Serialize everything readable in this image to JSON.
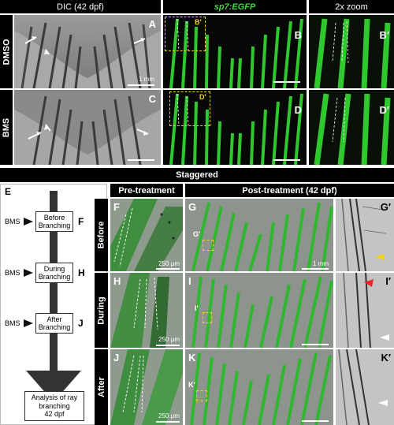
{
  "headers": {
    "dic": "DIC (42 dpf)",
    "sp7": "sp7:EGFP",
    "zoom": "2x zoom",
    "staggered": "Staggered",
    "pre": "Pre-treatment",
    "post": "Post-treatment (42 dpf)"
  },
  "row_labels": {
    "dmso": "DMSO",
    "bms": "BMS",
    "before": "Before",
    "during": "During",
    "after": "After"
  },
  "panel_labels": {
    "A": "A",
    "B": "B",
    "B_inset": "B′",
    "B_zoom": "B′",
    "C": "C",
    "D": "D",
    "D_inset": "D′",
    "D_zoom": "D′",
    "E": "E",
    "F": "F",
    "G": "G",
    "G_inset": "G′",
    "G_zoom": "G′",
    "H": "H",
    "I": "I",
    "I_inset": "I′",
    "I_zoom": "I′",
    "J": "J",
    "K": "K",
    "K_inset": "K′",
    "K_zoom": "K′"
  },
  "scale_labels": {
    "mm1": "1 mm",
    "mm1_g": "1 mm",
    "um_f": "250 μm",
    "um_h": "250 μm",
    "um_j": "250 μm"
  },
  "diagram": {
    "bms": "BMS",
    "before_box": [
      "Before",
      "Branching"
    ],
    "before_letter": "F",
    "during_box": [
      "During",
      "Branching"
    ],
    "during_letter": "H",
    "after_box": [
      "After",
      "Branching"
    ],
    "after_letter": "J",
    "analysis_box": [
      "Analysis of ray",
      "branching",
      "42 dpf"
    ]
  },
  "colors": {
    "egfp_green": "#3ddc3d",
    "highlight_yellow": "#f2d028",
    "arrow_yellow": "#f5d21a",
    "arrow_red": "#e8262a"
  }
}
